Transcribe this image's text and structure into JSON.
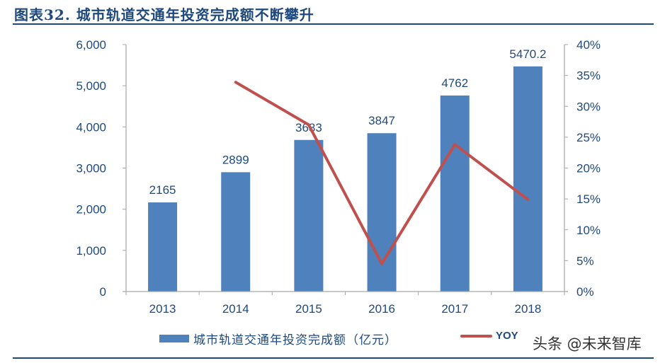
{
  "title": "图表32.  城市轨道交通年投资完成额不断攀升",
  "watermark": "头条 @未来智库",
  "colors": {
    "bar": "#4F81BD",
    "line": "#C0504D",
    "text": "#1F497D",
    "axis": "#A6A6A6"
  },
  "legend": {
    "bar_label": "城市轨道交通年投资完成额（亿元）",
    "line_label": "YOY"
  },
  "axes": {
    "left_ticks": [
      "0",
      "1,000",
      "2,000",
      "3,000",
      "4,000",
      "5,000",
      "6,000"
    ],
    "right_ticks": [
      "0%",
      "5%",
      "10%",
      "15%",
      "20%",
      "25%",
      "30%",
      "35%",
      "40%"
    ],
    "x_ticks": [
      "2013",
      "2014",
      "2015",
      "2016",
      "2017",
      "2018"
    ]
  },
  "data_labels": [
    "2165",
    "2899",
    "3683",
    "3847",
    "4762",
    "5470.2"
  ],
  "chart_data": {
    "type": "bar+line",
    "title": "图表32.  城市轨道交通年投资完成额不断攀升",
    "categories": [
      "2013",
      "2014",
      "2015",
      "2016",
      "2017",
      "2018"
    ],
    "series": [
      {
        "name": "城市轨道交通年投资完成额（亿元）",
        "type": "bar",
        "axis": "left",
        "values": [
          2165,
          2899,
          3683,
          3847,
          4762,
          5470.2
        ]
      },
      {
        "name": "YOY",
        "type": "line",
        "axis": "right",
        "unit": "%",
        "values": [
          null,
          33.9,
          27.0,
          4.5,
          23.8,
          14.9
        ]
      }
    ],
    "xlabel": "",
    "ylabel_left": "",
    "ylabel_right": "",
    "ylim_left": [
      0,
      6000
    ],
    "ylim_right": [
      0,
      40
    ],
    "yticks_left": [
      0,
      1000,
      2000,
      3000,
      4000,
      5000,
      6000
    ],
    "yticks_right": [
      0,
      5,
      10,
      15,
      20,
      25,
      30,
      35,
      40
    ],
    "grid": false,
    "legend_position": "bottom"
  }
}
